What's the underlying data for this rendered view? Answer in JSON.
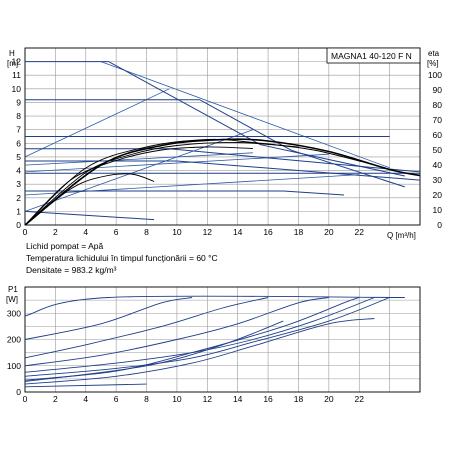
{
  "colors": {
    "qh_curve": "#000000",
    "eta_curve": "#1f3f8a",
    "system_curve": "#2a5aa8",
    "grid": "#9a9a9a"
  },
  "product_label": "MAGNA1 40-120 F N",
  "fluid_info": [
    "Lichid pompat = Apă",
    "Temperatura lichidului în timpul funcţionării = 60 °C",
    "Densitate = 983.2 kg/m³"
  ],
  "chart_data": [
    {
      "type": "line",
      "x_axis": {
        "label": "Q [m³/h]",
        "range": [
          0,
          26
        ],
        "ticks": [
          0,
          2,
          4,
          6,
          8,
          10,
          12,
          14,
          16,
          18,
          20,
          22
        ]
      },
      "y_axis_left": {
        "label_top": "H",
        "label_unit": "[m]",
        "range": [
          0,
          13
        ],
        "ticks": [
          0,
          1,
          2,
          3,
          4,
          5,
          6,
          7,
          8,
          9,
          10,
          11,
          12
        ]
      },
      "y_axis_right": {
        "label_top": "eta",
        "label_unit": "[%]",
        "range": [
          0,
          118
        ],
        "ticks": [
          0,
          10,
          20,
          30,
          40,
          50,
          60,
          70,
          80,
          90,
          100
        ]
      },
      "grid": true,
      "head_curves": [
        [
          [
            0,
            12.0
          ],
          [
            5.5,
            12.0
          ],
          [
            15.5,
            5.9
          ],
          [
            25,
            3.6
          ]
        ],
        [
          [
            0,
            9.2
          ],
          [
            11.5,
            9.2
          ],
          [
            17.5,
            5.5
          ],
          [
            25,
            2.8
          ]
        ],
        [
          [
            0,
            6.5
          ],
          [
            24,
            6.5
          ]
        ],
        [
          [
            0,
            5.6
          ],
          [
            9.5,
            5.6
          ],
          [
            26,
            3.9
          ]
        ],
        [
          [
            0,
            4.7
          ],
          [
            10,
            4.7
          ],
          [
            26,
            3.3
          ]
        ],
        [
          [
            0,
            3.8
          ],
          [
            26,
            3.8
          ]
        ],
        [
          [
            0,
            2.5
          ],
          [
            17,
            2.5
          ],
          [
            21,
            2.2
          ]
        ],
        [
          [
            0,
            1.0
          ],
          [
            8.5,
            0.4
          ]
        ]
      ],
      "efficiency_curves": [
        [
          [
            0,
            0
          ],
          [
            5,
            40
          ],
          [
            9,
            53
          ],
          [
            13,
            57
          ],
          [
            16,
            56
          ],
          [
            20,
            49
          ],
          [
            24,
            37
          ],
          [
            26,
            33
          ]
        ],
        [
          [
            0,
            0
          ],
          [
            4,
            38
          ],
          [
            8,
            52
          ],
          [
            12,
            57
          ],
          [
            15,
            55
          ],
          [
            19,
            50
          ],
          [
            23,
            40
          ]
        ],
        [
          [
            0,
            0
          ],
          [
            4,
            35
          ],
          [
            7,
            47
          ],
          [
            10,
            53
          ],
          [
            14,
            55
          ],
          [
            18,
            52
          ]
        ],
        [
          [
            0,
            0
          ],
          [
            3,
            30
          ],
          [
            6,
            43
          ],
          [
            9,
            50
          ],
          [
            12,
            52
          ],
          [
            15,
            51
          ]
        ],
        [
          [
            0,
            0
          ],
          [
            3,
            24
          ],
          [
            5,
            32
          ],
          [
            7,
            34
          ],
          [
            8.5,
            29
          ]
        ]
      ],
      "system_curves": [
        [
          [
            0,
            5.0
          ],
          [
            9.5,
            10.0
          ]
        ],
        [
          [
            0,
            1.0
          ],
          [
            15,
            7.0
          ]
        ],
        [
          [
            0,
            3.9
          ],
          [
            20,
            5.2
          ]
        ],
        [
          [
            0,
            2.2
          ],
          [
            22,
            3.7
          ]
        ],
        [
          [
            0,
            4.4
          ],
          [
            15,
            5.3
          ]
        ],
        [
          [
            5,
            12.0
          ],
          [
            24,
            4.2
          ]
        ]
      ]
    },
    {
      "type": "line",
      "x_axis": {
        "range": [
          0,
          26
        ],
        "ticks": [
          0,
          2,
          4,
          6,
          8,
          10,
          12,
          14,
          16,
          18,
          20,
          22
        ]
      },
      "y_axis_left": {
        "label_top": "P1",
        "label_unit": "[W]",
        "range": [
          0,
          400
        ],
        "ticks": [
          0,
          100,
          200,
          300
        ]
      },
      "grid": true,
      "power_curves": [
        [
          [
            0,
            290
          ],
          [
            5.5,
            360
          ],
          [
            25,
            360
          ]
        ],
        [
          [
            0,
            200
          ],
          [
            5,
            260
          ],
          [
            9,
            340
          ],
          [
            11,
            360
          ]
        ],
        [
          [
            0,
            130
          ],
          [
            4,
            180
          ],
          [
            9,
            250
          ],
          [
            13,
            320
          ],
          [
            16,
            360
          ]
        ],
        [
          [
            0,
            100
          ],
          [
            5,
            140
          ],
          [
            10,
            200
          ],
          [
            14,
            260
          ],
          [
            18,
            340
          ],
          [
            20,
            360
          ]
        ],
        [
          [
            0,
            75
          ],
          [
            6,
            110
          ],
          [
            11,
            150
          ],
          [
            15,
            200
          ],
          [
            19,
            270
          ],
          [
            23,
            360
          ]
        ],
        [
          [
            0,
            60
          ],
          [
            6,
            90
          ],
          [
            11,
            130
          ],
          [
            15,
            190
          ],
          [
            20,
            270
          ],
          [
            24,
            360
          ]
        ],
        [
          [
            0,
            45
          ],
          [
            6,
            80
          ],
          [
            11,
            150
          ],
          [
            17,
            250
          ],
          [
            21,
            340
          ],
          [
            22,
            360
          ]
        ],
        [
          [
            0,
            40
          ],
          [
            8,
            100
          ],
          [
            13,
            180
          ],
          [
            17,
            270
          ]
        ],
        [
          [
            0,
            30
          ],
          [
            6,
            60
          ],
          [
            11,
            110
          ],
          [
            15,
            175
          ],
          [
            20,
            260
          ],
          [
            23,
            280
          ]
        ],
        [
          [
            0,
            20
          ],
          [
            8,
            30
          ]
        ]
      ]
    }
  ]
}
